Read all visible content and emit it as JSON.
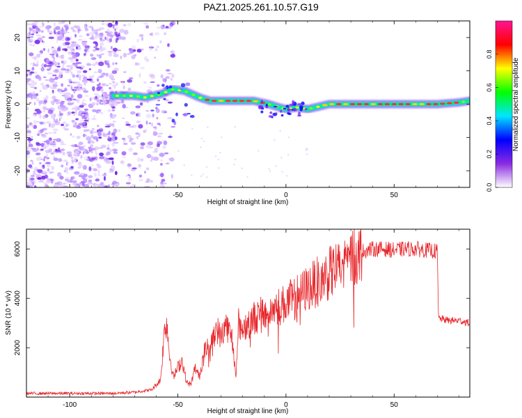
{
  "figure": {
    "title": "PAZ1.2025.261.10.57.G19"
  },
  "chart_data": [
    {
      "type": "heatmap",
      "xlabel": "Height of straight line (km)",
      "ylabel": "Frequency (Hz)",
      "xlim": [
        -120,
        85
      ],
      "ylim": [
        -25,
        25
      ],
      "xticks": [
        -100,
        -50,
        0,
        50
      ],
      "yticks": [
        -20,
        -10,
        0,
        10,
        20
      ],
      "colorbar": {
        "label": "Normalized spectral amplitude",
        "range": [
          0,
          1
        ],
        "ticks": [
          0.0,
          0.2,
          0.4,
          0.6,
          0.8
        ],
        "colormap": [
          "#ffffff",
          "#8a2be2",
          "#0000ff",
          "#00e5ff",
          "#00ff00",
          "#ffff00",
          "#ff0000",
          "#ff1493"
        ]
      },
      "ridge": [
        {
          "x": -80,
          "y": 2.5
        },
        {
          "x": -70,
          "y": 2.5
        },
        {
          "x": -65,
          "y": 2.0
        },
        {
          "x": -58,
          "y": 3.0
        },
        {
          "x": -52,
          "y": 4.5
        },
        {
          "x": -47,
          "y": 4.0
        },
        {
          "x": -40,
          "y": 2.0
        },
        {
          "x": -35,
          "y": 1.0
        },
        {
          "x": -25,
          "y": 1.0
        },
        {
          "x": -15,
          "y": 1.0
        },
        {
          "x": -8,
          "y": 0.0
        },
        {
          "x": -3,
          "y": -1.0
        },
        {
          "x": 0,
          "y": -1.5
        },
        {
          "x": 5,
          "y": -1.0
        },
        {
          "x": 10,
          "y": -1.5
        },
        {
          "x": 20,
          "y": 0.0
        },
        {
          "x": 30,
          "y": 0.0
        },
        {
          "x": 40,
          "y": 0.0
        },
        {
          "x": 50,
          "y": 0.0
        },
        {
          "x": 60,
          "y": 0.0
        },
        {
          "x": 70,
          "y": 0.0
        },
        {
          "x": 80,
          "y": 0.5
        },
        {
          "x": 85,
          "y": 1.0
        }
      ],
      "noise_region_x": [
        -120,
        -60
      ]
    },
    {
      "type": "line",
      "xlabel": "Height of straight line (km)",
      "ylabel": "SNR (10 * v/v)",
      "xlim": [
        -120,
        85
      ],
      "ylim": [
        0,
        6800
      ],
      "xticks": [
        -100,
        -50,
        0,
        50
      ],
      "yticks": [
        2000,
        4000,
        6000
      ],
      "series": [
        {
          "color": "#e8262a",
          "x": [
            -120,
            -100,
            -80,
            -70,
            -62,
            -58,
            -57,
            -56,
            -55,
            -54,
            -52,
            -50,
            -48,
            -46,
            -44,
            -42,
            -40,
            -38,
            -35,
            -32,
            -30,
            -28,
            -25,
            -23,
            -22,
            -20,
            -15,
            -10,
            -5,
            0,
            5,
            10,
            15,
            20,
            25,
            30,
            35,
            40,
            45,
            50,
            55,
            60,
            65,
            70,
            70.5,
            75,
            80,
            85
          ],
          "y": [
            150,
            150,
            150,
            200,
            300,
            700,
            1800,
            2900,
            3000,
            1800,
            800,
            1200,
            1500,
            600,
            500,
            1200,
            800,
            1800,
            2200,
            2800,
            2400,
            3000,
            2400,
            900,
            3000,
            2800,
            3200,
            3400,
            3600,
            3800,
            4100,
            4400,
            4700,
            5000,
            5300,
            5600,
            5900,
            6000,
            6000,
            5950,
            6000,
            6000,
            5950,
            5900,
            3200,
            3100,
            3100,
            3000
          ]
        }
      ]
    }
  ]
}
